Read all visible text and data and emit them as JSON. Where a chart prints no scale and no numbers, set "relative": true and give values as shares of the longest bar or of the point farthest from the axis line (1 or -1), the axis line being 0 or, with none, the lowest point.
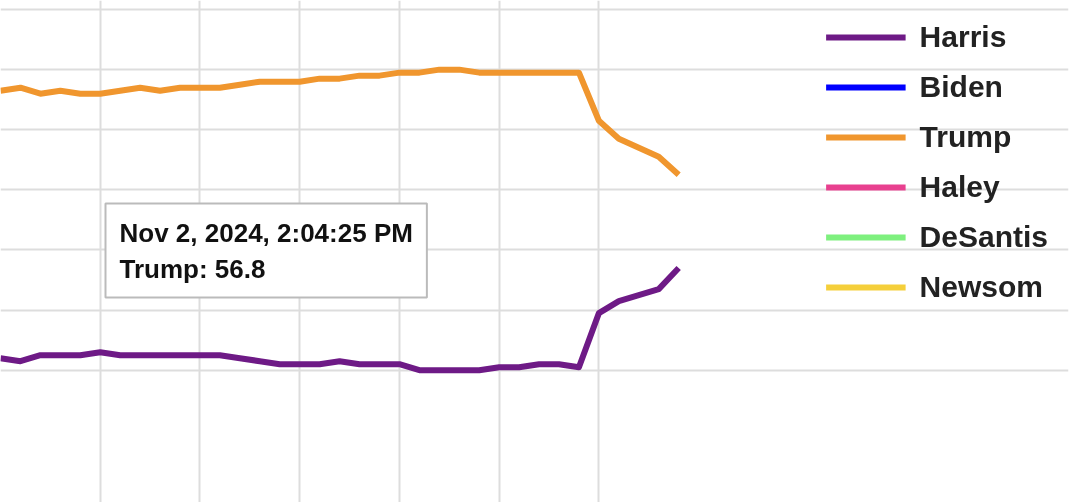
{
  "chart_data": {
    "type": "line",
    "relative": true,
    "grid": true,
    "legend": "right",
    "line_style": "solid",
    "marker": "none",
    "categories": [
      null,
      null,
      null,
      null,
      null,
      null,
      null,
      null,
      null,
      null,
      null,
      null,
      null,
      null,
      null,
      null,
      null,
      null,
      null,
      null,
      null,
      null,
      null,
      null,
      null,
      null,
      null,
      null,
      null,
      null,
      null,
      null,
      null,
      null,
      null
    ],
    "series": [
      {
        "name": "Harris",
        "color": "#6e1a86",
        "values": [
          0.04,
          0.03,
          0.05,
          0.05,
          0.05,
          0.06,
          0.05,
          0.05,
          0.05,
          0.05,
          0.05,
          0.05,
          0.04,
          0.03,
          0.02,
          0.02,
          0.02,
          0.03,
          0.02,
          0.02,
          0.02,
          0.0,
          0.0,
          0.0,
          0.0,
          0.01,
          0.01,
          0.02,
          0.02,
          0.01,
          0.19,
          0.23,
          0.25,
          0.27,
          0.34
        ]
      },
      {
        "name": "Biden",
        "color": "#0000ff",
        "values": [
          null,
          null,
          null,
          null,
          null,
          null,
          null,
          null,
          null,
          null,
          null,
          null,
          null,
          null,
          null,
          null,
          null,
          null,
          null,
          null,
          null,
          null,
          null,
          null,
          null,
          null,
          null,
          null,
          null,
          null,
          null,
          null,
          null,
          null,
          null
        ]
      },
      {
        "name": "Trump",
        "color": "#f0962e",
        "values": [
          0.93,
          0.94,
          0.92,
          0.93,
          0.92,
          0.92,
          0.93,
          0.94,
          0.93,
          0.94,
          0.94,
          0.94,
          0.95,
          0.96,
          0.96,
          0.96,
          0.97,
          0.97,
          0.98,
          0.98,
          0.99,
          0.99,
          1.0,
          1.0,
          0.99,
          0.99,
          0.99,
          0.99,
          0.99,
          0.99,
          0.83,
          0.77,
          0.74,
          0.71,
          0.65
        ]
      },
      {
        "name": "Haley",
        "color": "#e8408f",
        "values": [
          null,
          null,
          null,
          null,
          null,
          null,
          null,
          null,
          null,
          null,
          null,
          null,
          null,
          null,
          null,
          null,
          null,
          null,
          null,
          null,
          null,
          null,
          null,
          null,
          null,
          null,
          null,
          null,
          null,
          null,
          null,
          null,
          null,
          null,
          null
        ]
      },
      {
        "name": "DeSantis",
        "color": "#7ef07e",
        "values": [
          null,
          null,
          null,
          null,
          null,
          null,
          null,
          null,
          null,
          null,
          null,
          null,
          null,
          null,
          null,
          null,
          null,
          null,
          null,
          null,
          null,
          null,
          null,
          null,
          null,
          null,
          null,
          null,
          null,
          null,
          null,
          null,
          null,
          null,
          null
        ]
      },
      {
        "name": "Newsom",
        "color": "#f5cf3a",
        "values": [
          null,
          null,
          null,
          null,
          null,
          null,
          null,
          null,
          null,
          null,
          null,
          null,
          null,
          null,
          null,
          null,
          null,
          null,
          null,
          null,
          null,
          null,
          null,
          null,
          null,
          null,
          null,
          null,
          null,
          null,
          null,
          null,
          null,
          null,
          null
        ]
      }
    ],
    "annotations": [
      "Nov 2, 2024, 2:04:25 PM\nTrump: 56.8"
    ]
  }
}
